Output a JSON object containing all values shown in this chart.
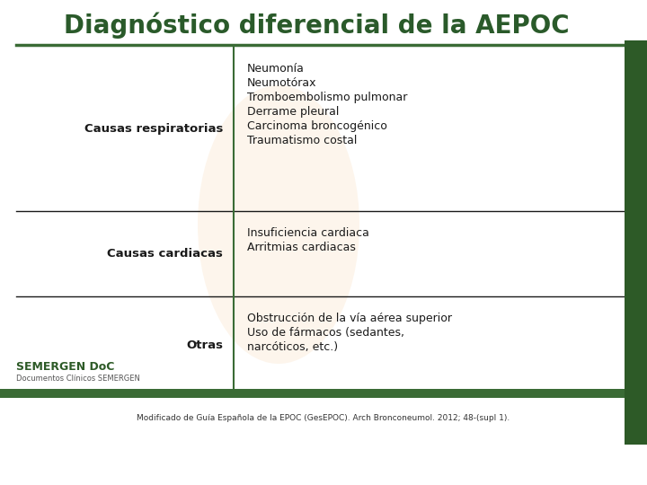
{
  "title": "Diagnóstico diferencial de la AEPOC",
  "title_fontsize": 20,
  "title_color": "#2a5a2a",
  "bg_color": "#ffffff",
  "header_line_color": "#3a6b35",
  "right_bar_color": "#2d5a27",
  "footer_bar_color": "#3a6b35",
  "divider_color": "#1a1a1a",
  "col_divider_color": "#3a6b35",
  "rows": [
    {
      "label": "Causas respiratorias",
      "items": [
        "Neumonía",
        "Neumotórax",
        "Tromboembolismo pulmonar",
        "Derrame pleural",
        "Carcinoma broncogénico",
        "Traumatismo costal"
      ]
    },
    {
      "label": "Causas cardiacas",
      "items": [
        "Insuficiencia cardiaca",
        "Arritmias cardiacas"
      ]
    },
    {
      "label": "Otras",
      "items": [
        "Obstrucción de la vía aérea superior",
        "Uso de fármacos (sedantes,",
        "narcóticos, etc.)"
      ]
    }
  ],
  "footer_text": "Modificado de Guía Española de la EPOC (GesEPOC). Arch Bronconeumol. 2012; 48-(supl 1).",
  "semergen_doc_text": "SEMERGEN DoC",
  "semergen_doc_sub": "Documentos Clínicos SEMERGEN",
  "label_fontsize": 9.5,
  "item_fontsize": 9,
  "footer_fontsize": 6.5,
  "label_color": "#1a1a1a",
  "item_color": "#1a1a1a",
  "watermark_color": "#f5c080",
  "watermark_alpha": 0.15
}
